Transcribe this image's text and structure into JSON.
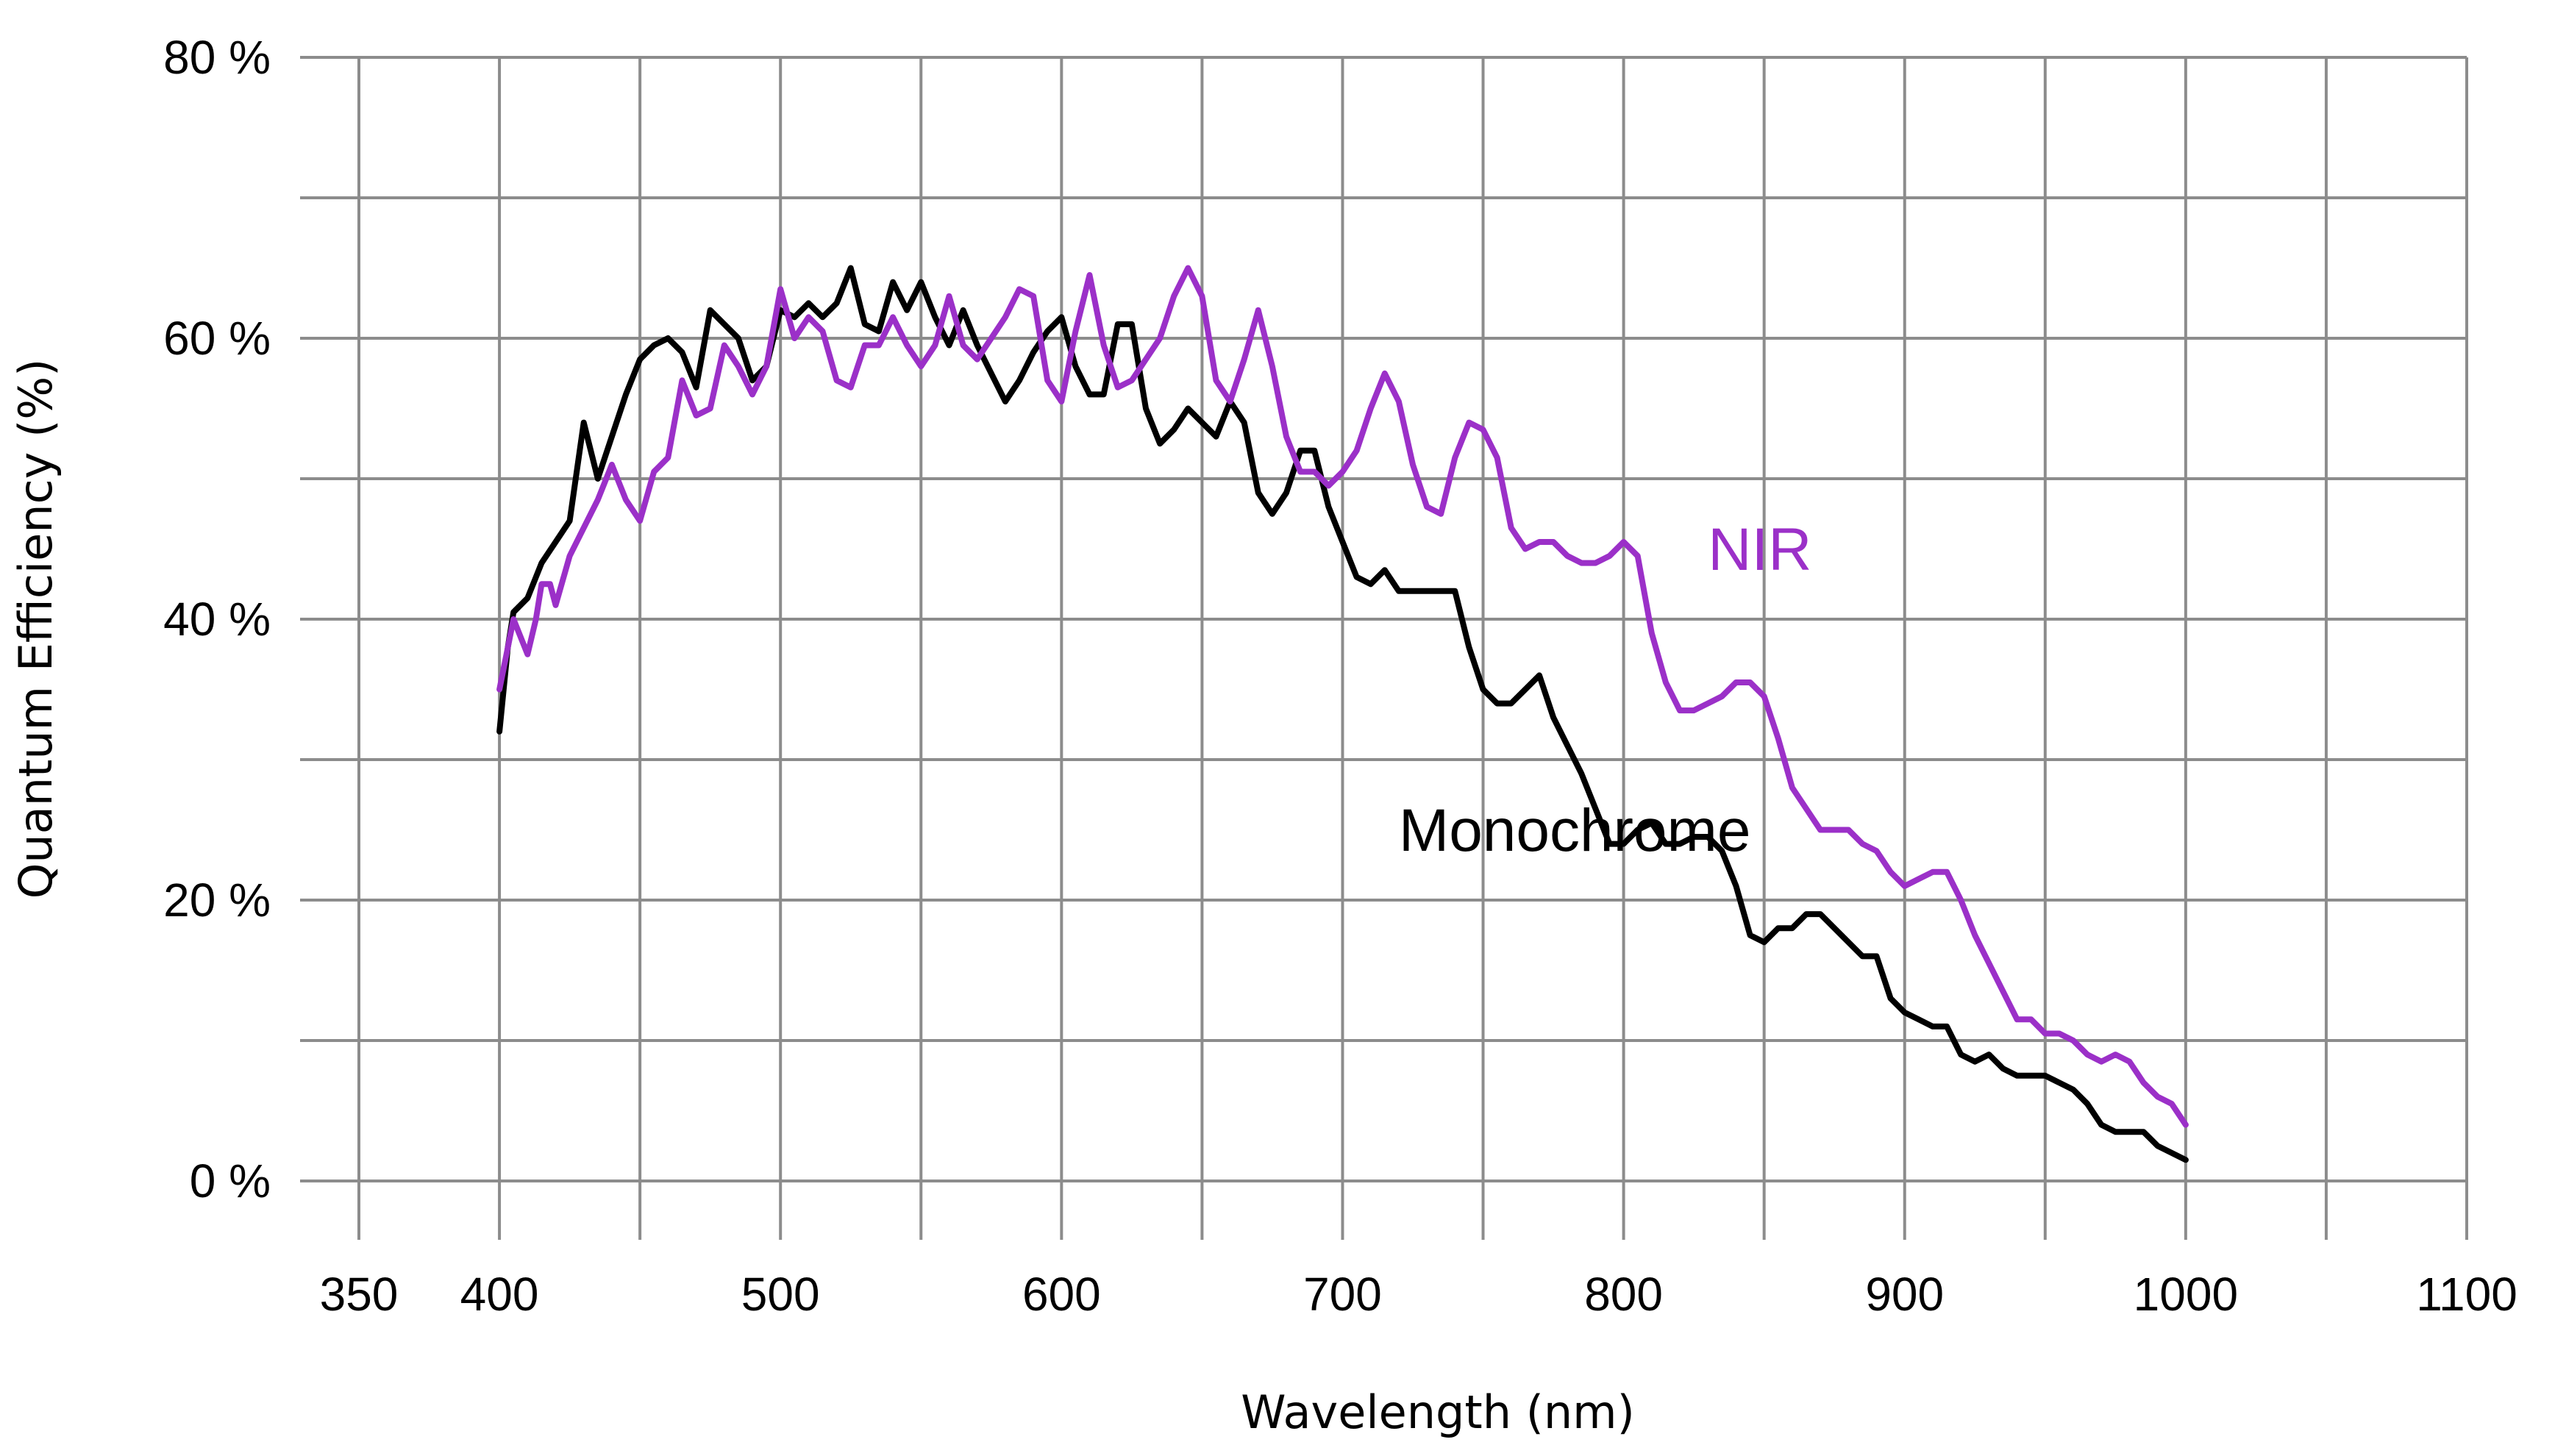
{
  "chart_data": {
    "type": "line",
    "title": "",
    "xlabel": "Wavelength (nm)",
    "ylabel": "Quantum Efficiency (%)",
    "xlim": [
      350,
      1100
    ],
    "ylim": [
      0,
      80
    ],
    "x_ticks": [
      350,
      400,
      500,
      600,
      700,
      800,
      900,
      1000,
      1100
    ],
    "x_tick_labels": [
      "350",
      "400",
      "500",
      "600",
      "700",
      "800",
      "900",
      "1000",
      "1100"
    ],
    "y_ticks": [
      0,
      20,
      40,
      60,
      80
    ],
    "y_tick_labels": [
      "0 %",
      "20 %",
      "40 %",
      "60 %",
      "80 %"
    ],
    "grid_x": [
      350,
      400,
      450,
      500,
      550,
      600,
      650,
      700,
      750,
      800,
      850,
      900,
      950,
      1000,
      1050,
      1100
    ],
    "grid_y": [
      0,
      10,
      20,
      30,
      40,
      50,
      60,
      70,
      80
    ],
    "grid": true,
    "series": [
      {
        "name": "Monochrome",
        "color": "#000000",
        "x": [
          400,
          403,
          405,
          410,
          415,
          420,
          425,
          430,
          435,
          440,
          445,
          450,
          455,
          460,
          465,
          470,
          475,
          480,
          485,
          490,
          495,
          500,
          505,
          510,
          515,
          520,
          525,
          530,
          535,
          540,
          545,
          550,
          555,
          560,
          565,
          570,
          575,
          580,
          585,
          590,
          595,
          600,
          605,
          610,
          615,
          620,
          625,
          630,
          635,
          640,
          645,
          650,
          655,
          660,
          665,
          670,
          675,
          680,
          685,
          690,
          695,
          700,
          705,
          710,
          715,
          720,
          725,
          730,
          735,
          740,
          745,
          750,
          755,
          760,
          765,
          770,
          775,
          780,
          785,
          790,
          795,
          800,
          805,
          810,
          815,
          820,
          825,
          830,
          835,
          840,
          845,
          850,
          855,
          860,
          865,
          870,
          875,
          880,
          885,
          890,
          895,
          900,
          905,
          910,
          915,
          920,
          925,
          930,
          935,
          940,
          945,
          950,
          955,
          960,
          965,
          970,
          975,
          980,
          985,
          990,
          995,
          1000
        ],
        "y": [
          32,
          38,
          40.5,
          41.5,
          44,
          45.5,
          47,
          54,
          50,
          53,
          56,
          58.5,
          59.5,
          60,
          59,
          56.5,
          62,
          61,
          60,
          57,
          58,
          62,
          61.5,
          62.5,
          61.5,
          62.5,
          65,
          61,
          60.5,
          64,
          62,
          64,
          61.5,
          59.5,
          62,
          59.5,
          57.5,
          55.5,
          57,
          59,
          60.5,
          61.5,
          58,
          56,
          56,
          61,
          61,
          55,
          52.5,
          53.5,
          55,
          54,
          53,
          55.5,
          54,
          49,
          47.5,
          49,
          52,
          52,
          48,
          45.5,
          43,
          42.5,
          43.5,
          42,
          42,
          42,
          42,
          42,
          38,
          35,
          34,
          34,
          35,
          36,
          33,
          31,
          29,
          26.5,
          24,
          24,
          25,
          25.5,
          24,
          24,
          24.5,
          24.5,
          23.5,
          21,
          17.5,
          17,
          18,
          18,
          19,
          19,
          18,
          17,
          16,
          16,
          13,
          12,
          11.5,
          11,
          11,
          9,
          8.5,
          9,
          8,
          7.5,
          7.5,
          7.5,
          7,
          6.5,
          5.5,
          4,
          3.5,
          3.5,
          3.5,
          2.5,
          2,
          1.5
        ]
      },
      {
        "name": "NIR",
        "color": "#9b30c8",
        "x": [
          400,
          405,
          410,
          413,
          415,
          418,
          420,
          425,
          430,
          435,
          440,
          445,
          450,
          455,
          460,
          465,
          470,
          475,
          480,
          485,
          490,
          495,
          500,
          505,
          510,
          515,
          520,
          525,
          530,
          535,
          540,
          545,
          550,
          555,
          560,
          565,
          570,
          575,
          580,
          585,
          590,
          595,
          600,
          605,
          610,
          615,
          620,
          625,
          630,
          635,
          640,
          645,
          650,
          655,
          660,
          665,
          670,
          675,
          680,
          685,
          690,
          695,
          700,
          705,
          710,
          715,
          720,
          725,
          730,
          735,
          740,
          745,
          750,
          755,
          760,
          765,
          770,
          775,
          780,
          785,
          790,
          795,
          800,
          805,
          810,
          815,
          820,
          825,
          830,
          835,
          840,
          845,
          850,
          855,
          860,
          865,
          870,
          875,
          880,
          885,
          890,
          895,
          900,
          905,
          910,
          915,
          920,
          925,
          930,
          935,
          940,
          945,
          950,
          955,
          960,
          965,
          970,
          975,
          980,
          985,
          990,
          995,
          1000
        ],
        "y": [
          35,
          40,
          37.5,
          40,
          42.5,
          42.5,
          41,
          44.5,
          46.5,
          48.5,
          51,
          48.5,
          47,
          50.5,
          51.5,
          57,
          54.5,
          55,
          59.5,
          58,
          56,
          58,
          63.5,
          60,
          61.5,
          60.5,
          57,
          56.5,
          59.5,
          59.5,
          61.5,
          59.5,
          58,
          59.5,
          63,
          59.5,
          58.5,
          60,
          61.5,
          63.5,
          63,
          57,
          55.5,
          60.5,
          64.5,
          59.5,
          56.5,
          57,
          58.5,
          60,
          63,
          65,
          63,
          57,
          55.5,
          58.5,
          62,
          58,
          53,
          50.5,
          50.5,
          49.5,
          50.5,
          52,
          55,
          57.5,
          55.5,
          51,
          48,
          47.5,
          51.5,
          54,
          53.5,
          51.5,
          46.5,
          45,
          45.5,
          45.5,
          44.5,
          44,
          44,
          44.5,
          45.5,
          44.5,
          39,
          35.5,
          33.5,
          33.5,
          34,
          34.5,
          35.5,
          35.5,
          34.5,
          31.5,
          28,
          26.5,
          25,
          25,
          25,
          24,
          23.5,
          22,
          21,
          21.5,
          22,
          22,
          20,
          17.5,
          15.5,
          13.5,
          11.5,
          11.5,
          10.5,
          10.5,
          10,
          9,
          8.5,
          9,
          8.5,
          7,
          6,
          5.5,
          4
        ]
      }
    ],
    "annotations": [
      {
        "text": "NIR",
        "series": "NIR",
        "x": 830,
        "y": 43.5
      },
      {
        "text": "Monochrome",
        "series": "Monochrome",
        "x": 720,
        "y": 23.5
      }
    ]
  }
}
